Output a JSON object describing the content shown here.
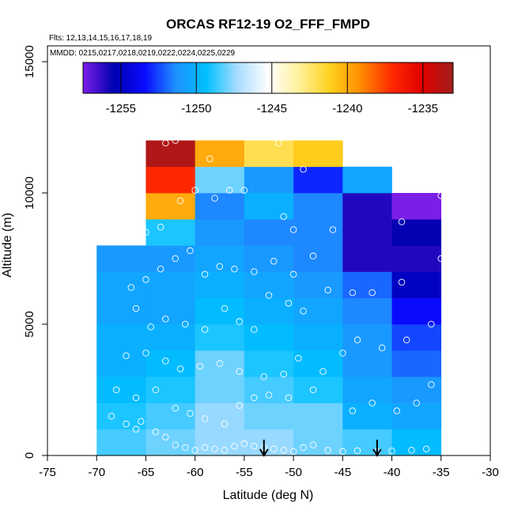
{
  "chart_data": {
    "type": "heatmap",
    "title": "ORCAS RF12-19 O2_FFF_FMPD",
    "flights_label": "Flts: 12,13,14,15,16,17,18,19",
    "mmdd_label": "MMDD: 0215,0217,0218,0219,0222,0224,0225,0229",
    "xlabel": "Latitude (deg N)",
    "ylabel": "Altitude (m)",
    "xlim": [
      -75,
      -30
    ],
    "ylim": [
      0,
      15000
    ],
    "x_ticks": [
      "-75",
      "-70",
      "-65",
      "-60",
      "-55",
      "-50",
      "-45",
      "-40",
      "-35",
      "-30"
    ],
    "x_tick_values": [
      -75,
      -70,
      -65,
      -60,
      -55,
      -50,
      -45,
      -40,
      -35,
      -30
    ],
    "y_ticks": [
      "0",
      "5000",
      "10000",
      "15000"
    ],
    "y_tick_values": [
      0,
      5000,
      10000,
      15000
    ],
    "colorbar": {
      "min": -1257.5,
      "max": -1233,
      "ticks": [
        "-1255",
        "-1250",
        "-1245",
        "-1240",
        "-1235"
      ],
      "tick_values": [
        -1255,
        -1250,
        -1245,
        -1240,
        -1235
      ],
      "colors": [
        "#7b1fe8",
        "#0000b0",
        "#0a0aff",
        "#1e90ff",
        "#00c0ff",
        "#a8dcff",
        "#ffffff",
        "#fff09a",
        "#ffd21f",
        "#ff8c00",
        "#ff2a00",
        "#e00000",
        "#a01e1e"
      ]
    },
    "bin_width_deg": 5,
    "bin_height_m": 1000,
    "columns": [
      {
        "x0": -70,
        "values": [
          -1248.5,
          -1249,
          -1249.5,
          -1250,
          -1250,
          -1250.5,
          -1250.5,
          -1251
        ]
      },
      {
        "x0": -65,
        "values": [
          -1248,
          -1248.5,
          -1249,
          -1249.5,
          -1250,
          -1250.5,
          -1250.5,
          -1251,
          -1249,
          -1240,
          -1237,
          -1233.5
        ]
      },
      {
        "x0": -60,
        "values": [
          -1247.5,
          -1247.5,
          -1248,
          -1248,
          -1249,
          -1249.5,
          -1250,
          -1250.5,
          -1251,
          -1251.5,
          -1248,
          -1240
        ]
      },
      {
        "x0": -55,
        "values": [
          -1247.5,
          -1248,
          -1248.5,
          -1249,
          -1249.5,
          -1250,
          -1250.5,
          -1251,
          -1251.5,
          -1250,
          -1251,
          -1242
        ]
      },
      {
        "x0": -50,
        "values": [
          -1248,
          -1248,
          -1249,
          -1249.5,
          -1250,
          -1250.5,
          -1251,
          -1251.5,
          -1251.5,
          -1251.5,
          -1253,
          -1241
        ]
      },
      {
        "x0": -45,
        "values": [
          -1248.5,
          -1250,
          -1250.5,
          -1251,
          -1251,
          -1251.5,
          -1252,
          -1256,
          -1256,
          -1256,
          -1250.5
        ]
      },
      {
        "x0": -40,
        "values": [
          -1249.5,
          -1250.5,
          -1251,
          -1252,
          -1252.5,
          -1253.5,
          -1255,
          -1256,
          -1255.5,
          -1257.5
        ]
      }
    ],
    "aircraft_flights_markers": [
      {
        "lat": -53,
        "label": "down-arrow"
      },
      {
        "lat": -41.5,
        "label": "down-arrow"
      }
    ],
    "sample_points": [
      [
        -68.5,
        1500
      ],
      [
        -67,
        1200
      ],
      [
        -66,
        1000
      ],
      [
        -65.5,
        1300
      ],
      [
        -64,
        900
      ],
      [
        -63,
        700
      ],
      [
        -62,
        400
      ],
      [
        -61,
        300
      ],
      [
        -60,
        200
      ],
      [
        -59,
        300
      ],
      [
        -58,
        250
      ],
      [
        -57,
        200
      ],
      [
        -56,
        350
      ],
      [
        -55,
        450
      ],
      [
        -54,
        350
      ],
      [
        -53,
        300
      ],
      [
        -52,
        250
      ],
      [
        -51,
        200
      ],
      [
        -50,
        150
      ],
      [
        -49,
        300
      ],
      [
        -48,
        400
      ],
      [
        -46.5,
        200
      ],
      [
        -45,
        150
      ],
      [
        -43.5,
        180
      ],
      [
        -41.5,
        150
      ],
      [
        -40,
        170
      ],
      [
        -38,
        200
      ],
      [
        -36.5,
        250
      ],
      [
        -68,
        2500
      ],
      [
        -66,
        2200
      ],
      [
        -64,
        2500
      ],
      [
        -62,
        1800
      ],
      [
        -60.5,
        1600
      ],
      [
        -59,
        1400
      ],
      [
        -57,
        1200
      ],
      [
        -55.5,
        1900
      ],
      [
        -54,
        2200
      ],
      [
        -52.5,
        2300
      ],
      [
        -50.5,
        2200
      ],
      [
        -48,
        2500
      ],
      [
        -44,
        1700
      ],
      [
        -42,
        2000
      ],
      [
        -39.5,
        1700
      ],
      [
        -37.5,
        2000
      ],
      [
        -36,
        2700
      ],
      [
        -67,
        3800
      ],
      [
        -65,
        3900
      ],
      [
        -63,
        3600
      ],
      [
        -61.5,
        3300
      ],
      [
        -59.5,
        3400
      ],
      [
        -57.5,
        3500
      ],
      [
        -55.5,
        3200
      ],
      [
        -53,
        3000
      ],
      [
        -51,
        3100
      ],
      [
        -49.5,
        3700
      ],
      [
        -47,
        3200
      ],
      [
        -45,
        3900
      ],
      [
        -43.5,
        4400
      ],
      [
        -41,
        4100
      ],
      [
        -38.5,
        4400
      ],
      [
        -66,
        5600
      ],
      [
        -64.5,
        4900
      ],
      [
        -63,
        5200
      ],
      [
        -61,
        5000
      ],
      [
        -59,
        4800
      ],
      [
        -57,
        5600
      ],
      [
        -55.5,
        5100
      ],
      [
        -54,
        4800
      ],
      [
        -52.5,
        6100
      ],
      [
        -50.5,
        5800
      ],
      [
        -49,
        5500
      ],
      [
        -46.5,
        6300
      ],
      [
        -44,
        6200
      ],
      [
        -42,
        6200
      ],
      [
        -39,
        6600
      ],
      [
        -36,
        5000
      ],
      [
        -66.5,
        6400
      ],
      [
        -65,
        6700
      ],
      [
        -63.5,
        7100
      ],
      [
        -62,
        7500
      ],
      [
        -60.5,
        7800
      ],
      [
        -59,
        6900
      ],
      [
        -57.5,
        7200
      ],
      [
        -56,
        7100
      ],
      [
        -54,
        7000
      ],
      [
        -52,
        7400
      ],
      [
        -50,
        6900
      ],
      [
        -48,
        7600
      ],
      [
        -39,
        8900
      ],
      [
        -35,
        7500
      ],
      [
        -65,
        8500
      ],
      [
        -63.5,
        8700
      ],
      [
        -61.5,
        9700
      ],
      [
        -60,
        10100
      ],
      [
        -58,
        9800
      ],
      [
        -56.5,
        10100
      ],
      [
        -55,
        10100
      ],
      [
        -51,
        9100
      ],
      [
        -50,
        8600
      ],
      [
        -46,
        8600
      ],
      [
        -63,
        11900
      ],
      [
        -62,
        12000
      ],
      [
        -58.5,
        11300
      ],
      [
        -51.5,
        11900
      ],
      [
        -49,
        10900
      ],
      [
        -35,
        9900
      ]
    ]
  }
}
